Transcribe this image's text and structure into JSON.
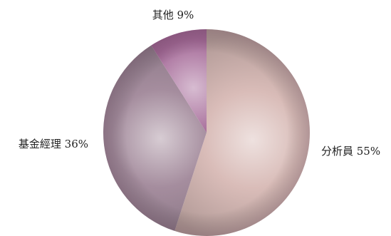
{
  "chart_data": {
    "type": "pie",
    "slices": [
      {
        "label": "分析員 55%",
        "value": 55,
        "color": "#d9bcb8"
      },
      {
        "label": "基金經理 36%",
        "value": 36,
        "color": "#a58d9e"
      },
      {
        "label": "其他 9%",
        "value": 9,
        "color": "#a56a98"
      }
    ],
    "start_angle_deg": 90,
    "direction": "clockwise",
    "legend": "none"
  }
}
